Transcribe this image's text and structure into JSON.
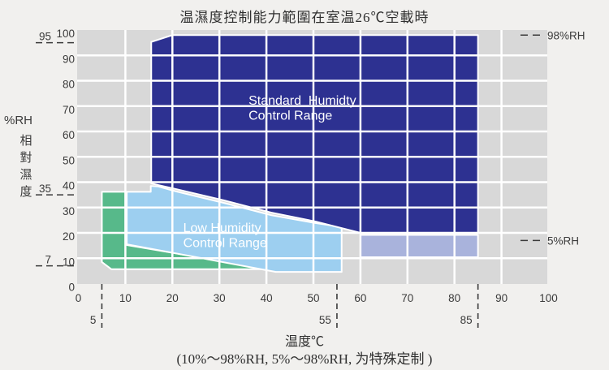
{
  "title": "温濕度控制能力範圍在室温26℃空載時",
  "x_axis_label": "温度℃",
  "footnote": "(10%～98%RH, 5%～98%RH, 为特殊定制 )",
  "y_axis_title": {
    "rh": "%RH",
    "cjk_chars": [
      "相",
      "對",
      "濕",
      "度"
    ]
  },
  "style": {
    "page_bg": "#f1f0ee",
    "plot_bg": "#d8d8d8",
    "grid_color": "#ffffff",
    "marker_color": "#3b3b3b",
    "text_color": "#3b3b3b"
  },
  "chart_data": {
    "type": "area",
    "title": "温濕度控制能力範圍在室温26℃空載時",
    "xlabel": "温度℃",
    "ylabel": "%RH 相對濕度",
    "xlim": [
      0,
      100
    ],
    "ylim": [
      0,
      100
    ],
    "grid": true,
    "x_ticks": [
      0,
      10,
      20,
      30,
      40,
      50,
      60,
      70,
      80,
      90,
      100
    ],
    "y_ticks": [
      0,
      10,
      20,
      30,
      40,
      50,
      60,
      70,
      80,
      90,
      100
    ],
    "x_special_marks": [
      {
        "value": 5,
        "label": "5"
      },
      {
        "value": 55,
        "label": "55"
      },
      {
        "value": 85,
        "label": "85"
      }
    ],
    "y_special_marks": [
      {
        "value": 95,
        "label": "95"
      },
      {
        "value": 35,
        "label": "35"
      },
      {
        "value": 7,
        "label": "7"
      }
    ],
    "right_marks": [
      {
        "value": 98,
        "label": "98%RH"
      },
      {
        "value": 17,
        "label": "5%RH"
      }
    ],
    "regions": [
      {
        "name": "low-temp-green-extension",
        "color": "#57b98a",
        "label_lines": [],
        "points": [
          [
            5,
            36.2
          ],
          [
            10.3,
            36.2
          ],
          [
            10.3,
            15.2
          ],
          [
            40.5,
            5.7
          ],
          [
            7,
            5.7
          ],
          [
            5,
            8.5
          ]
        ]
      },
      {
        "name": "low-humidity-control-range",
        "color": "#9dcff0",
        "label_lines": [
          "Low Humidity",
          "Control Range"
        ],
        "label_anchor": {
          "x": 22.3,
          "y": 20.3
        },
        "points": [
          [
            10.3,
            36.2
          ],
          [
            15.4,
            36.2
          ],
          [
            15.4,
            38.5
          ],
          [
            17,
            38.3
          ],
          [
            20.7,
            36.4
          ],
          [
            31,
            31.8
          ],
          [
            41,
            27
          ],
          [
            50,
            24
          ],
          [
            56,
            22.3
          ],
          [
            56,
            4.6
          ],
          [
            42,
            4.6
          ],
          [
            10.3,
            15.5
          ]
        ]
      },
      {
        "name": "high-temp-5rh-extension",
        "color": "#a9b3dc",
        "label_lines": [],
        "points": [
          [
            60,
            19.2
          ],
          [
            85,
            19.2
          ],
          [
            85,
            10.4
          ],
          [
            60,
            10.4
          ]
        ]
      },
      {
        "name": "standard-humidity-control-range",
        "color": "#2d3191",
        "label_lines": [
          "Standard  Humidty",
          "Control Range"
        ],
        "label_anchor": {
          "x": 36.2,
          "y": 70.5
        },
        "points": [
          [
            15.5,
            39.5
          ],
          [
            15.5,
            95.3
          ],
          [
            20,
            98
          ],
          [
            85,
            98
          ],
          [
            85,
            20
          ],
          [
            60,
            20
          ],
          [
            50.4,
            24.5
          ],
          [
            41,
            28
          ],
          [
            31,
            32.8
          ],
          [
            20.7,
            37.3
          ]
        ]
      }
    ]
  }
}
